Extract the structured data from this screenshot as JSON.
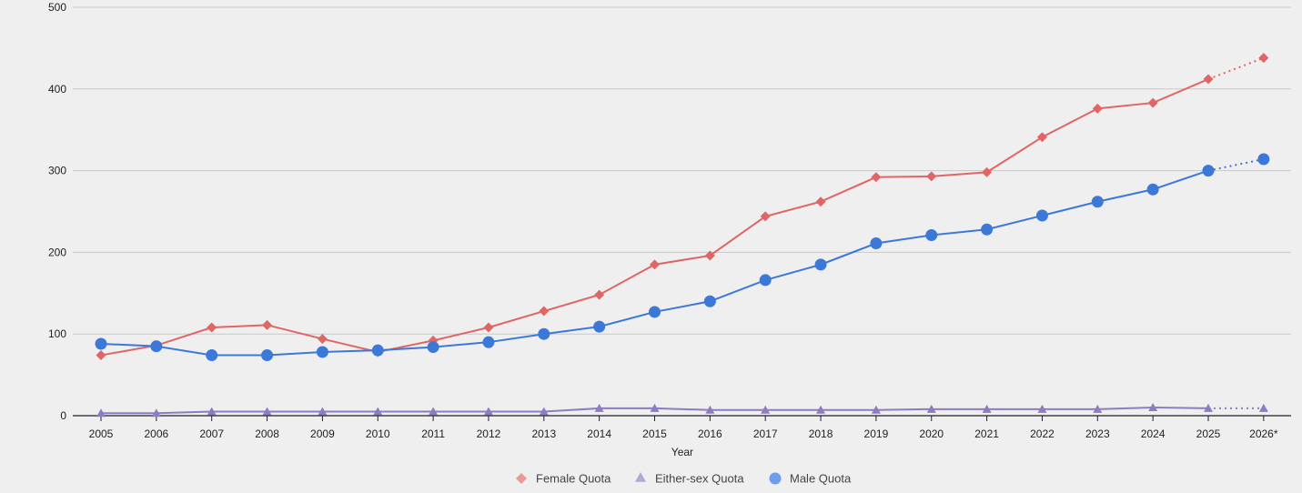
{
  "chart_data": {
    "type": "line",
    "title": "",
    "xlabel": "Year",
    "ylabel": "",
    "ylim": [
      0,
      500
    ],
    "yticks": [
      0,
      100,
      200,
      300,
      400,
      500
    ],
    "grid": true,
    "legend_position": "bottom-center",
    "categories": [
      "2005",
      "2006",
      "2007",
      "2008",
      "2009",
      "2010",
      "2011",
      "2012",
      "2013",
      "2014",
      "2015",
      "2016",
      "2017",
      "2018",
      "2019",
      "2020",
      "2021",
      "2022",
      "2023",
      "2024",
      "2025",
      "2026*"
    ],
    "projected_from_index": 20,
    "series": [
      {
        "name": "Female Quota",
        "marker": "diamond",
        "color": "#e06666",
        "values": [
          74,
          86,
          108,
          111,
          94,
          78,
          92,
          108,
          128,
          148,
          185,
          196,
          244,
          262,
          292,
          293,
          298,
          341,
          376,
          383,
          412,
          438
        ]
      },
      {
        "name": "Either-sex Quota",
        "marker": "triangle",
        "color": "#8e7cc3",
        "values": [
          3,
          3,
          5,
          5,
          5,
          5,
          5,
          5,
          5,
          9,
          9,
          7,
          7,
          7,
          7,
          8,
          8,
          8,
          8,
          10,
          9,
          9
        ]
      },
      {
        "name": "Male Quota",
        "marker": "circle",
        "color": "#3c78d8",
        "values": [
          88,
          85,
          74,
          74,
          78,
          80,
          84,
          90,
          100,
          109,
          127,
          140,
          166,
          185,
          211,
          221,
          228,
          245,
          262,
          277,
          300,
          314
        ]
      }
    ]
  }
}
